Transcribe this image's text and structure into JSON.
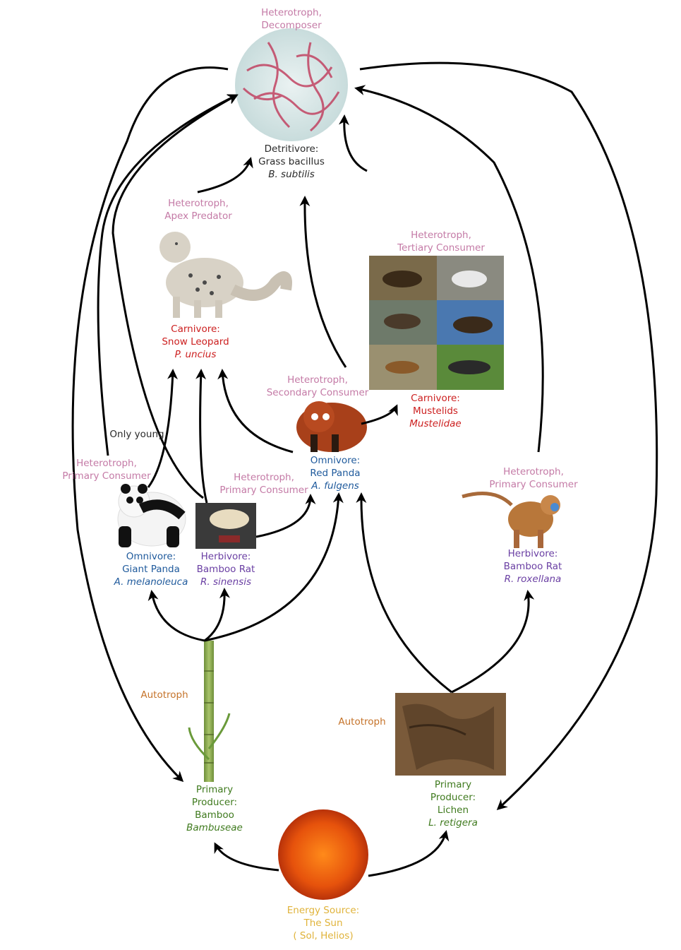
{
  "nodes": {
    "decomposer": {
      "role": [
        "Heterotroph,",
        "Decomposer"
      ],
      "name": [
        "Detritivore:",
        "Grass bacillus"
      ],
      "species": "B. subtilis"
    },
    "snow_leopard": {
      "role": [
        "Heterotroph,",
        "Apex Predator"
      ],
      "name": [
        "Carnivore:",
        "Snow Leopard"
      ],
      "species": "P. uncius"
    },
    "mustelids": {
      "role": [
        "Heterotroph,",
        "Tertiary Consumer"
      ],
      "name": [
        "Carnivore:",
        "Mustelids"
      ],
      "species": "Mustelidae"
    },
    "red_panda": {
      "role": [
        "Heterotroph,",
        "Secondary Consumer"
      ],
      "name": [
        "Omnivore:",
        "Red Panda"
      ],
      "species": "A. fulgens"
    },
    "giant_panda": {
      "role": [
        "Heterotroph,",
        "Primary Consumer"
      ],
      "name": [
        "Omnivore:",
        "Giant Panda"
      ],
      "species": "A. melanoleuca"
    },
    "bamboo_rat": {
      "role": [
        "Heterotroph,",
        "Primary Consumer"
      ],
      "name": [
        "Herbivore:",
        "Bamboo Rat"
      ],
      "species": "R. sinensis"
    },
    "monkey": {
      "role": [
        "Heterotroph,",
        "Primary Consumer"
      ],
      "name": [
        "Herbivore:",
        "Bamboo Rat"
      ],
      "species": "R. roxellana"
    },
    "bamboo": {
      "role": "Autotroph",
      "name": [
        "Primary",
        "Producer:",
        "Bamboo"
      ],
      "species": "Bambuseae"
    },
    "lichen": {
      "role": "Autotroph",
      "name": [
        "Primary",
        "Producer:",
        "Lichen"
      ],
      "species": "L. retigera"
    },
    "sun": {
      "name": [
        "Energy Source:",
        "The Sun",
        "( Sol, Helios)"
      ]
    }
  },
  "annotations": {
    "only_young": "Only young"
  },
  "colors": {
    "role": "#c47aa6",
    "decomposer": "#2a2a2a",
    "carnivore": "#cc1f1f",
    "omnivore": "#1f5a9c",
    "herbivore": "#6a3fa3",
    "producer": "#3f7a1e",
    "autotroph": "#c5732a",
    "sun": "#e0b33a",
    "arrow": "#000000"
  }
}
